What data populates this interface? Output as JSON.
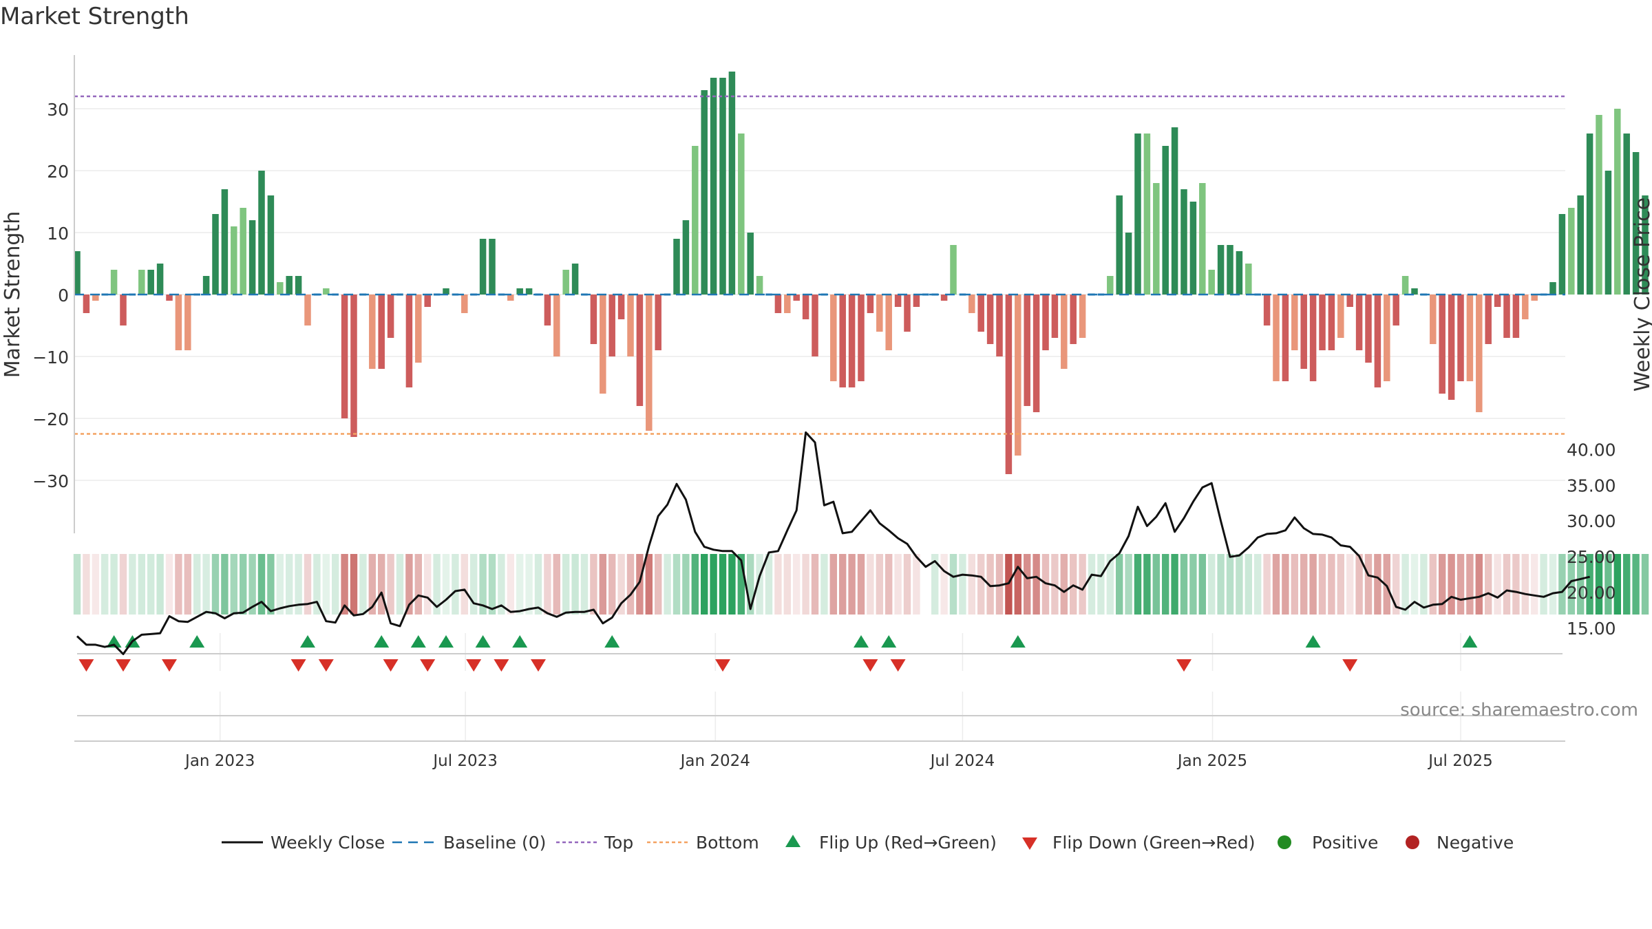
{
  "title": "Market Strength",
  "source": "source: sharemaestro.com",
  "colors": {
    "pos_dark": "#2e8b57",
    "pos_light": "#7fc57f",
    "neg_dark": "#cd5c5c",
    "neg_light": "#e9967a",
    "line": "#111111",
    "baseline": "#1f77b4",
    "top": "#9467bd",
    "bottom": "#f4a261",
    "flip_up": "#1a9850",
    "flip_down": "#d73027",
    "positive": "#228b22",
    "negative": "#b22222"
  },
  "chart_data": {
    "type": "bar+line",
    "title": "Market Strength",
    "ylabel": "Market Strength",
    "y2label": "Weekly Close Price",
    "ylim": [
      -38,
      39
    ],
    "y2lim": [
      10.6,
      45.5
    ],
    "yticks": [
      "30",
      "20",
      "10",
      "0",
      "−10",
      "−20",
      "−30"
    ],
    "y2ticks": [
      "40.00",
      "35.00",
      "30.00",
      "25.00",
      "20.00",
      "15.00"
    ],
    "xlim": [
      0,
      162
    ],
    "xticks": [
      {
        "label": "Jan 2023",
        "week": 15.5
      },
      {
        "label": "Jul 2023",
        "week": 42.1
      },
      {
        "label": "Jan 2024",
        "week": 69.2
      },
      {
        "label": "Jul 2024",
        "week": 96.0
      },
      {
        "label": "Jan 2025",
        "week": 123.1
      },
      {
        "label": "Jul 2025",
        "week": 150.0
      }
    ],
    "top_line": 32,
    "bottom_line": -22.5,
    "strength": [
      7,
      -3,
      -1,
      0,
      4,
      -5,
      0,
      4,
      4,
      5,
      -1,
      -9,
      -9,
      0,
      3,
      13,
      17,
      11,
      14,
      12,
      20,
      16,
      2,
      3,
      3,
      -5,
      0,
      1,
      0,
      -20,
      -23,
      0,
      -12,
      -12,
      -7,
      0,
      -15,
      -11,
      -2,
      0,
      1,
      0,
      -3,
      0,
      9,
      9,
      0,
      -1,
      1,
      1,
      0,
      -5,
      -10,
      4,
      5,
      0,
      -8,
      -16,
      -10,
      -4,
      -10,
      -18,
      -22,
      -9,
      0,
      9,
      12,
      24,
      33,
      35,
      35,
      36,
      26,
      10,
      3,
      0,
      -3,
      -3,
      -1,
      -4,
      -10,
      0,
      -14,
      -15,
      -15,
      -14,
      -3,
      -6,
      -9,
      -2,
      -6,
      -2,
      0,
      0,
      -1,
      8,
      0,
      -3,
      -6,
      -8,
      -10,
      -29,
      -26,
      -18,
      -19,
      -9,
      -7,
      -12,
      -8,
      -7,
      0,
      0,
      3,
      16,
      10,
      26,
      26,
      18,
      24,
      27,
      17,
      15,
      18,
      4,
      8,
      8,
      7,
      5,
      0,
      -5,
      -14,
      -14,
      -9,
      -12,
      -14,
      -9,
      -9,
      -7,
      -2,
      -9,
      -11,
      -15,
      -14,
      -5,
      3,
      1,
      0,
      -8,
      -16,
      -17,
      -14,
      -14,
      -19,
      -8,
      -2,
      -7,
      -7,
      -4,
      -1,
      0,
      2,
      13,
      14,
      16,
      26,
      29,
      20,
      30,
      26,
      23,
      16
    ],
    "close": [
      13.9,
      12.7,
      12.7,
      12.4,
      12.7,
      11.4,
      13.2,
      14.1,
      14.2,
      14.3,
      16.7,
      16.0,
      15.9,
      16.6,
      17.3,
      17.1,
      16.4,
      17.1,
      17.2,
      18.0,
      18.7,
      17.4,
      17.8,
      18.1,
      18.3,
      18.4,
      18.7,
      16.0,
      15.8,
      18.2,
      16.8,
      17.0,
      18.0,
      20.0,
      15.7,
      15.3,
      18.3,
      19.6,
      19.3,
      18.0,
      19.0,
      20.2,
      20.4,
      18.5,
      18.2,
      17.7,
      18.2,
      17.3,
      17.4,
      17.7,
      17.9,
      17.1,
      16.6,
      17.2,
      17.3,
      17.3,
      17.6,
      15.7,
      16.5,
      18.5,
      19.7,
      21.5,
      26.5,
      30.7,
      32.3,
      35.2,
      33.0,
      28.5,
      26.4,
      26.0,
      25.8,
      25.8,
      24.5,
      17.7,
      22.3,
      25.6,
      25.8,
      28.7,
      31.5,
      42.4,
      41.0,
      32.2,
      32.7,
      28.3,
      28.5,
      30.0,
      31.5,
      29.7,
      28.7,
      27.6,
      26.8,
      25.0,
      23.6,
      24.4,
      23.0,
      22.2,
      22.5,
      22.4,
      22.2,
      20.9,
      21.0,
      21.3,
      23.6,
      22.0,
      22.2,
      21.3,
      21.0,
      20.1,
      21.0,
      20.4,
      22.5,
      22.3,
      24.4,
      25.5,
      27.9,
      32.0,
      29.3,
      30.6,
      32.5,
      28.5,
      30.4,
      32.7,
      34.7,
      35.3,
      30.0,
      25.0,
      25.2,
      26.3,
      27.7,
      28.2,
      28.3,
      28.7,
      30.5,
      29.0,
      28.2,
      28.1,
      27.7,
      26.6,
      26.4,
      25.1,
      22.4,
      22.1,
      20.9,
      18.0,
      17.6,
      18.7,
      17.9,
      18.3,
      18.4,
      19.4,
      19.0,
      19.2,
      19.4,
      19.9,
      19.3,
      20.3,
      20.1,
      19.8,
      19.6,
      19.4,
      19.9,
      20.1,
      21.6,
      21.9,
      22.2
    ],
    "flip_up_weeks": [
      4,
      6,
      13,
      25,
      33,
      37,
      40,
      44,
      48,
      58,
      85,
      88,
      102,
      134,
      151
    ],
    "flip_down_weeks": [
      1,
      5,
      10,
      24,
      27,
      34,
      38,
      43,
      46,
      50,
      70,
      86,
      89,
      120,
      138
    ],
    "legend": [
      {
        "label": "Weekly Close",
        "kind": "line"
      },
      {
        "label": "Baseline (0)",
        "kind": "dash-baseline"
      },
      {
        "label": "Top",
        "kind": "dot-top"
      },
      {
        "label": "Bottom",
        "kind": "dot-bottom"
      },
      {
        "label": "Flip Up (Red→Green)",
        "kind": "tri-up"
      },
      {
        "label": "Flip Down (Green→Red)",
        "kind": "tri-down"
      },
      {
        "label": "Positive",
        "kind": "dot-positive"
      },
      {
        "label": "Negative",
        "kind": "dot-negative"
      }
    ]
  }
}
